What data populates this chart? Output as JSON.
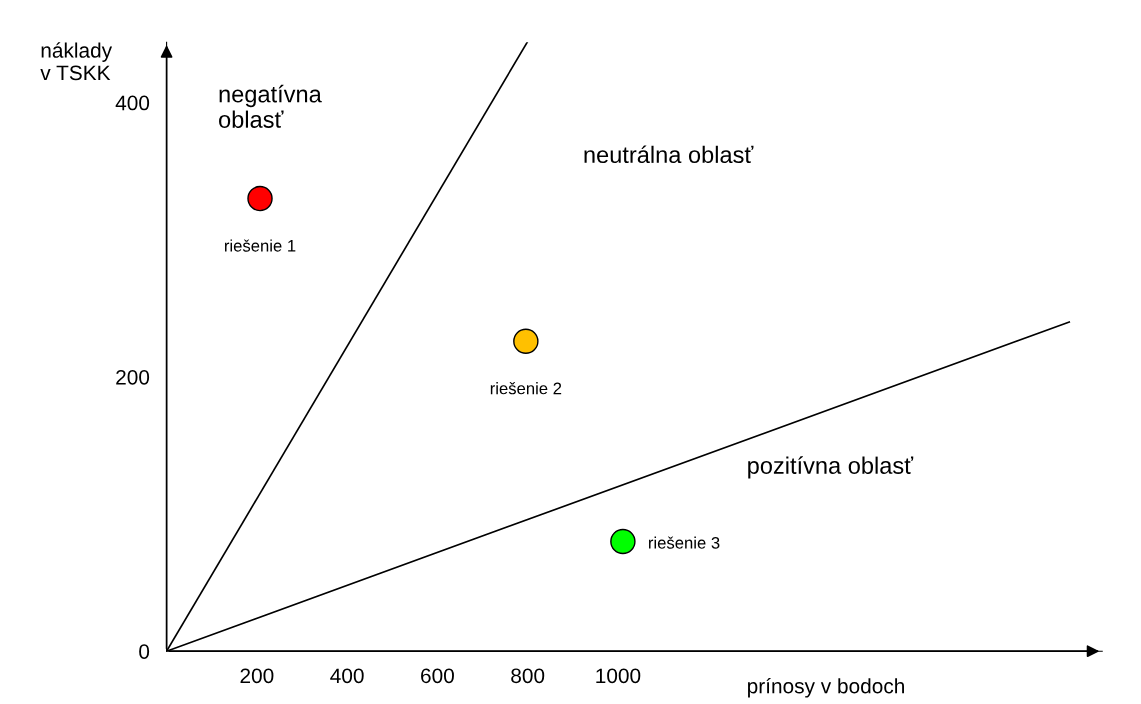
{
  "chart_data": {
    "type": "scatter",
    "xlabel": "prínosy v bodoch",
    "ylabel": "náklady\nv TSKK",
    "x": [
      207,
      796,
      1011
    ],
    "series": [
      {
        "values": [
          330,
          226,
          80
        ],
        "colors": [
          "#ff0000",
          "#ffc000",
          "#00ff00"
        ],
        "marker": "circle"
      },
      {
        "type": "line",
        "x": [
          0,
          799
        ],
        "values": [
          0,
          444
        ],
        "color": "#000000",
        "marker": "none"
      },
      {
        "type": "line",
        "x": [
          0,
          2000
        ],
        "values": [
          0,
          240
        ],
        "color": "#000000",
        "marker": "none"
      }
    ],
    "annotations": [
      {
        "text": "riešenie 1",
        "x": 207,
        "y": 330
      },
      {
        "text": "riešenie 2",
        "x": 796,
        "y": 226
      },
      {
        "text": "riešenie 3",
        "x": 1011,
        "y": 80
      },
      "negatívna\noblasť",
      "neutrálna oblasť",
      "pozitívna oblasť"
    ],
    "xlim": [
      0,
      2073
    ],
    "ylim": [
      0,
      444
    ],
    "xticks": [
      200,
      400,
      600,
      800,
      1000
    ],
    "yticks": [
      0,
      200,
      400
    ],
    "grid": false,
    "legend": false
  }
}
